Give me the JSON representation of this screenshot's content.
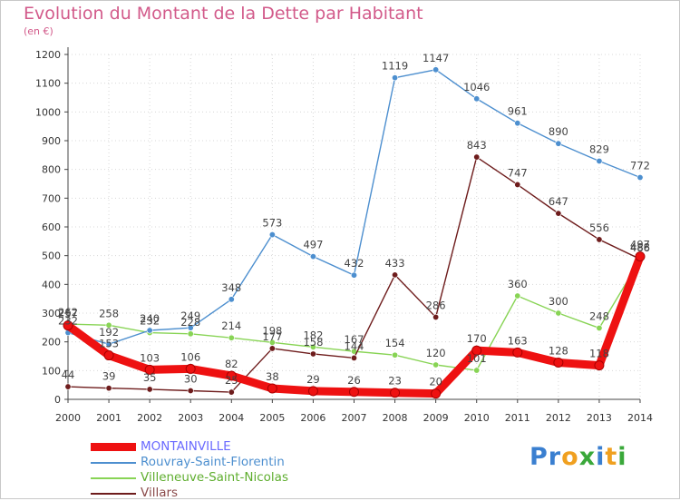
{
  "title": "Evolution du Montant de la Dette par Habitant",
  "subtitle": "(en €)",
  "logo": {
    "letters": [
      "P",
      "r",
      "o",
      "x",
      "i",
      "t",
      "i"
    ],
    "colors": [
      "#3a7fd0",
      "#3a7fd0",
      "#f0a020",
      "#3aa83a",
      "#3a7fd0",
      "#f0a020",
      "#3aa83a"
    ]
  },
  "chart_data": {
    "type": "line",
    "x": [
      2000,
      2001,
      2002,
      2003,
      2004,
      2005,
      2006,
      2007,
      2008,
      2009,
      2010,
      2011,
      2012,
      2013,
      2014
    ],
    "ylim": [
      0,
      1200
    ],
    "yticks": [
      0,
      100,
      200,
      300,
      400,
      500,
      600,
      700,
      800,
      900,
      1000,
      1100,
      1200
    ],
    "grid": true,
    "legend": "bottom-left",
    "series": [
      {
        "name": "MONTAINVILLE",
        "color": "#ee1111",
        "values": [
          257,
          153,
          103,
          106,
          82,
          38,
          29,
          26,
          23,
          20,
          170,
          163,
          128,
          118,
          497
        ]
      },
      {
        "name": "Rouvray-Saint-Florentin",
        "color": "#4d8fcf",
        "values": [
          232,
          192,
          240,
          249,
          348,
          573,
          497,
          432,
          1119,
          1147,
          1046,
          961,
          890,
          829,
          772
        ]
      },
      {
        "name": "Villeneuve-Saint-Nicolas",
        "color": "#88d455",
        "values": [
          262,
          258,
          232,
          228,
          214,
          198,
          182,
          167,
          154,
          120,
          101,
          360,
          300,
          248,
          486
        ]
      },
      {
        "name": "Villars",
        "color": "#6e1c1c",
        "values": [
          44,
          39,
          35,
          30,
          25,
          177,
          158,
          144,
          433,
          286,
          843,
          747,
          647,
          556,
          488
        ]
      }
    ]
  }
}
